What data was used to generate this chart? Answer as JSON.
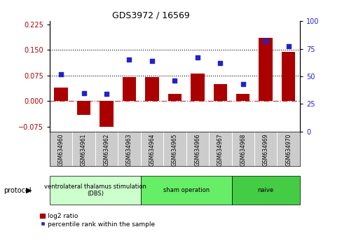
{
  "title": "GDS3972 / 16569",
  "samples": [
    "GSM634960",
    "GSM634961",
    "GSM634962",
    "GSM634963",
    "GSM634964",
    "GSM634965",
    "GSM634966",
    "GSM634967",
    "GSM634968",
    "GSM634969",
    "GSM634970"
  ],
  "log2_ratio": [
    0.04,
    -0.04,
    -0.075,
    0.07,
    0.07,
    0.02,
    0.08,
    0.05,
    0.02,
    0.185,
    0.145
  ],
  "percentile_rank": [
    52,
    35,
    34,
    65,
    64,
    46,
    67,
    62,
    43,
    82,
    77
  ],
  "ylim_left": [
    -0.09,
    0.235
  ],
  "ylim_right": [
    0,
    100
  ],
  "yticks_left": [
    -0.075,
    0.0,
    0.075,
    0.15,
    0.225
  ],
  "yticks_right": [
    0,
    25,
    50,
    75,
    100
  ],
  "hlines": [
    0.075,
    0.15
  ],
  "bar_color": "#aa0000",
  "dot_color": "#2222cc",
  "zero_line_color": "#cc4444",
  "group_ranges": [
    [
      0,
      3,
      "ventrolateral thalamus stimulation\n(DBS)",
      "#ccffcc"
    ],
    [
      4,
      7,
      "sham operation",
      "#66ee66"
    ],
    [
      8,
      10,
      "naive",
      "#44cc44"
    ]
  ],
  "protocol_label": "protocol",
  "legend_bar_label": "log2 ratio",
  "legend_dot_label": "percentile rank within the sample",
  "background_color": "#ffffff",
  "label_bg_color": "#cccccc",
  "plot_bg_color": "#ffffff"
}
